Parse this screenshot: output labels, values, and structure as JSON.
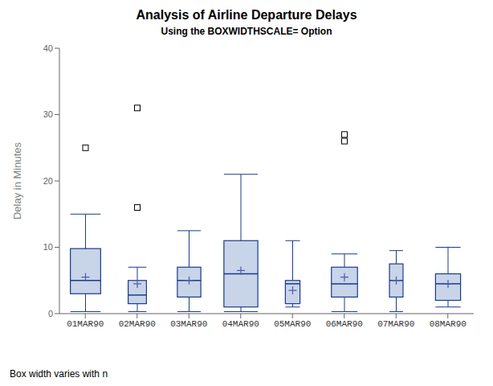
{
  "chart_data": {
    "type": "box",
    "title": "Analysis of Airline Departure Delays",
    "subtitle": "Using the BOXWIDTHSCALE= Option",
    "y_label": "Delay in Minutes",
    "footnote": "Box width varies with n",
    "categories": [
      "01MAR90",
      "02MAR90",
      "03MAR90",
      "04MAR90",
      "05MAR90",
      "06MAR90",
      "07MAR90",
      "08MAR90"
    ],
    "boxes": [
      {
        "q1": 3.0,
        "median": 5.0,
        "q3": 9.8,
        "whisker_low": 0.3,
        "whisker_high": 15.0,
        "mean": 5.5,
        "fliers": [
          25.0
        ],
        "width": 0.58
      },
      {
        "q1": 1.5,
        "median": 2.8,
        "q3": 5.0,
        "whisker_low": 0.3,
        "whisker_high": 7.0,
        "mean": 4.5,
        "fliers": [
          16.0,
          31.0
        ],
        "width": 0.35
      },
      {
        "q1": 2.5,
        "median": 5.0,
        "q3": 7.0,
        "whisker_low": 0.3,
        "whisker_high": 12.5,
        "mean": 5.0,
        "fliers": [],
        "width": 0.45
      },
      {
        "q1": 1.0,
        "median": 6.0,
        "q3": 11.0,
        "whisker_low": 0.3,
        "whisker_high": 21.0,
        "mean": 6.5,
        "fliers": [],
        "width": 0.65
      },
      {
        "q1": 1.5,
        "median": 4.5,
        "q3": 5.0,
        "whisker_low": 1.0,
        "whisker_high": 11.0,
        "mean": 3.5,
        "fliers": [],
        "width": 0.28
      },
      {
        "q1": 2.5,
        "median": 4.5,
        "q3": 7.0,
        "whisker_low": 0.3,
        "whisker_high": 9.0,
        "mean": 5.5,
        "fliers": [
          26.0,
          27.0
        ],
        "width": 0.5
      },
      {
        "q1": 2.5,
        "median": 5.0,
        "q3": 7.5,
        "whisker_low": 0.3,
        "whisker_high": 9.5,
        "mean": 5.0,
        "fliers": [],
        "width": 0.26
      },
      {
        "q1": 2.0,
        "median": 4.5,
        "q3": 6.0,
        "whisker_low": 1.0,
        "whisker_high": 10.0,
        "mean": 4.5,
        "fliers": [],
        "width": 0.48
      }
    ],
    "ylim": [
      0,
      40
    ],
    "yticks": [
      0,
      10,
      20,
      30,
      40
    ],
    "grid": false,
    "colors": {
      "box": "#c8d4e8",
      "edge": "#1a3a8a",
      "mean": "#4a5aaa",
      "flier": "#000000"
    }
  }
}
